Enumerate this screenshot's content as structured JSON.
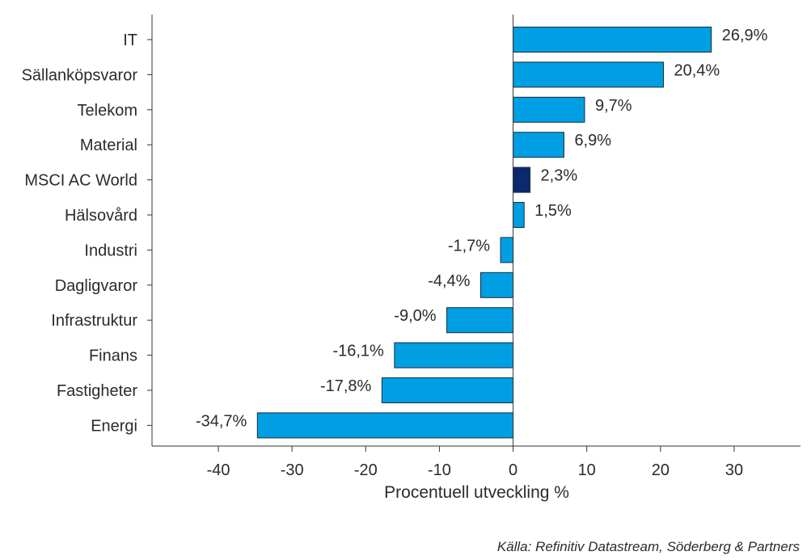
{
  "chart_data": {
    "type": "bar",
    "orientation": "horizontal",
    "categories": [
      "IT",
      "Sällanköpsvaror",
      "Telekom",
      "Material",
      "MSCI AC World",
      "Hälsovård",
      "Industri",
      "Dagligvaror",
      "Infrastruktur",
      "Finans",
      "Fastigheter",
      "Energi"
    ],
    "values": [
      26.9,
      20.4,
      9.7,
      6.9,
      2.3,
      1.5,
      -1.7,
      -4.4,
      -9.0,
      -16.1,
      -17.8,
      -34.7
    ],
    "value_labels": [
      "26,9%",
      "20,4%",
      "9,7%",
      "6,9%",
      "2,3%",
      "1,5%",
      "-1,7%",
      "-4,4%",
      "-9,0%",
      "-16,1%",
      "-17,8%",
      "-34,7%"
    ],
    "highlight_category": "MSCI AC World",
    "xlabel": "Procentuell utveckling %",
    "ylabel": "",
    "xlim": [
      -49,
      39
    ],
    "xticks": [
      -40,
      -30,
      -20,
      -10,
      0,
      10,
      20,
      30
    ],
    "xtick_labels": [
      "-40",
      "-30",
      "-20",
      "-10",
      "0",
      "10",
      "20",
      "30"
    ],
    "grid": false,
    "colors": {
      "bar": "#009fe3",
      "highlight": "#0b2a6e",
      "bar_stroke": "#1a2a3a",
      "axis": "#333333"
    }
  },
  "source_note": "Källa: Refinitiv Datastream, Söderberg & Partners"
}
